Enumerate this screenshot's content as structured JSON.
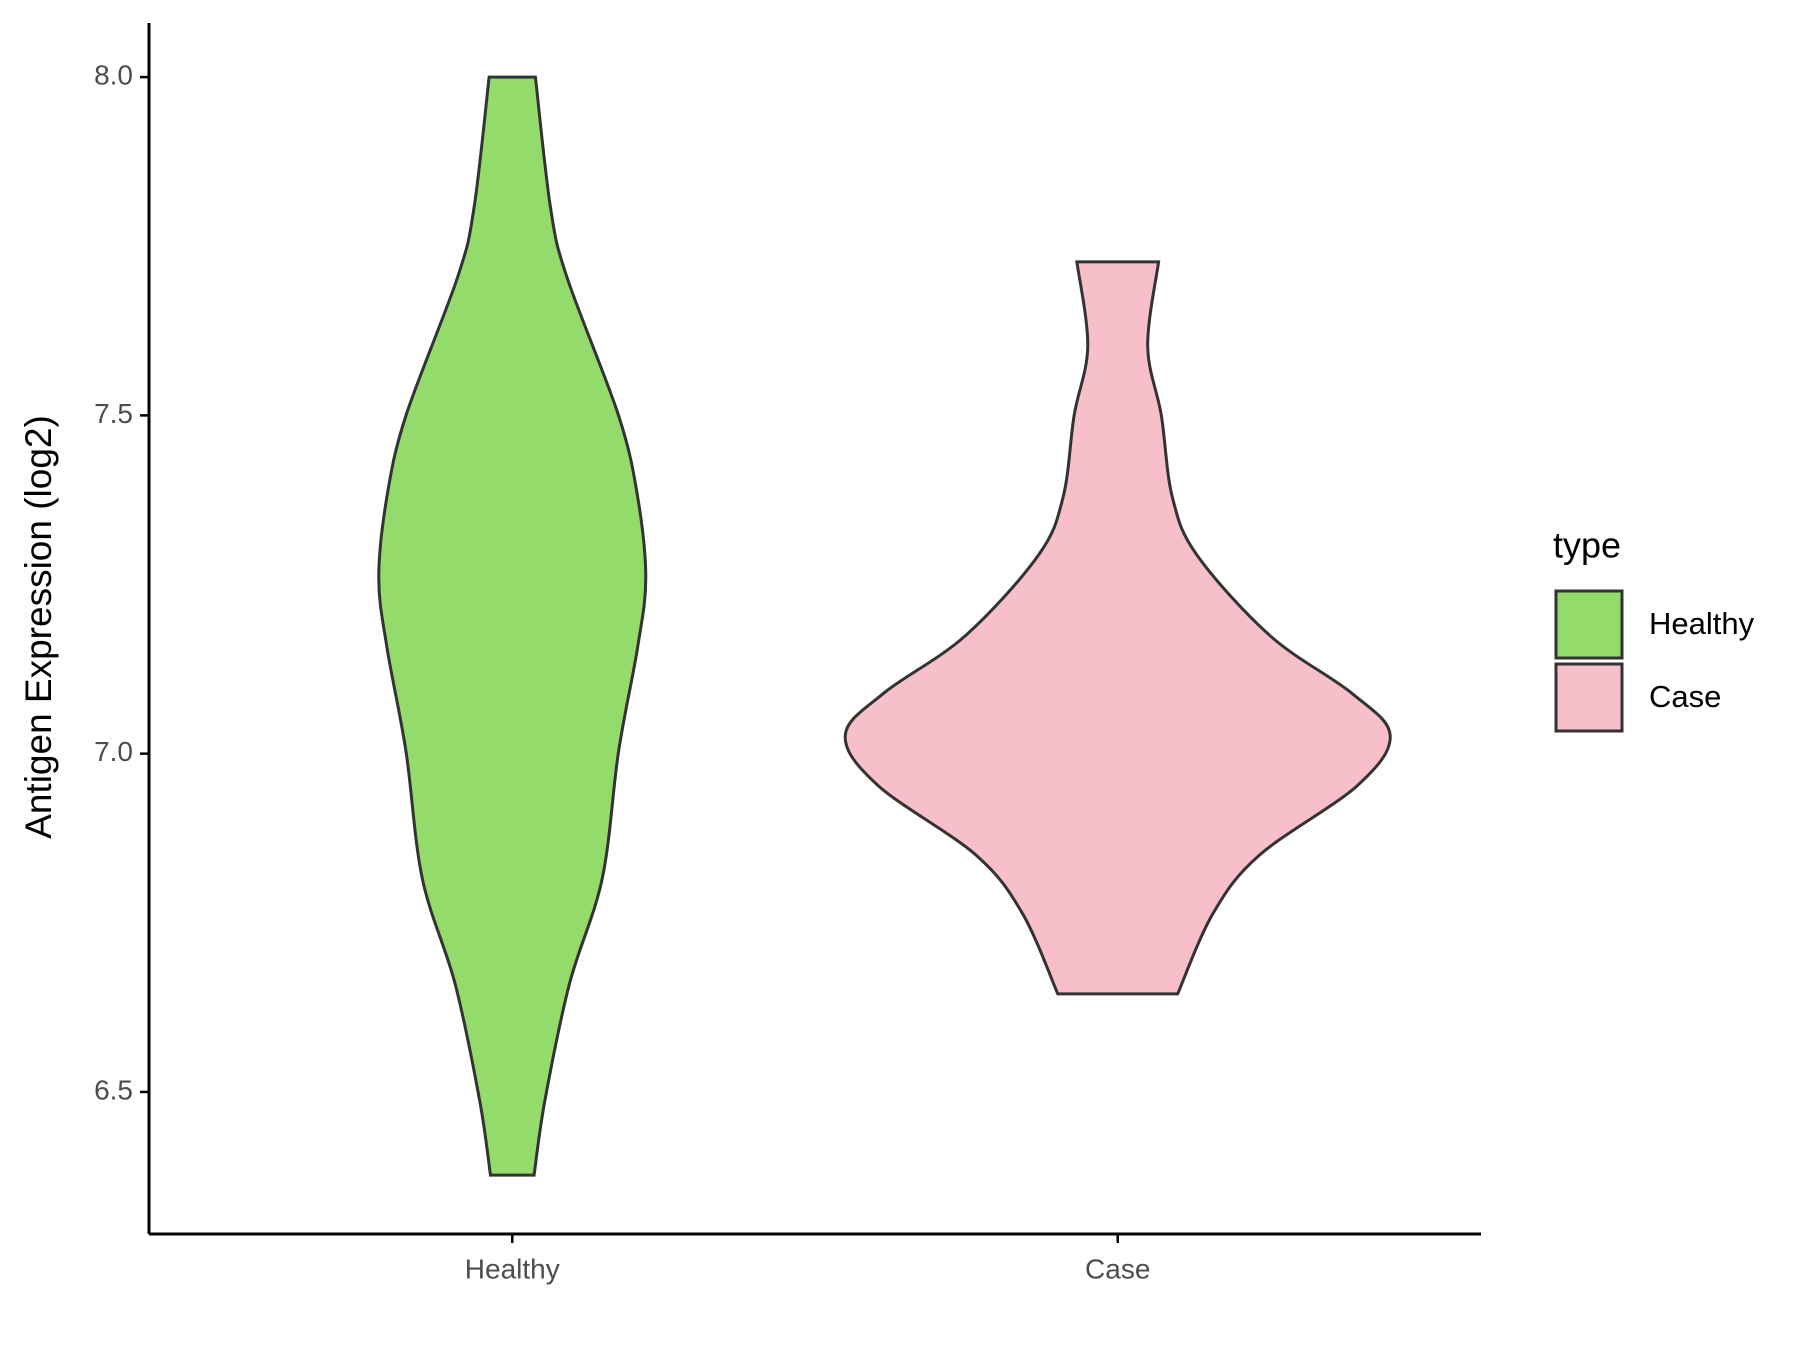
{
  "chart_data": {
    "type": "violin",
    "y_label": "Antigen Expression (log2)",
    "categories": [
      "Healthy",
      "Case"
    ],
    "legend_title": "type",
    "legend_position": "right",
    "series": [
      {
        "name": "Healthy",
        "color": "#93dc6b",
        "y": [
          8.0,
          7.808,
          7.705,
          7.5,
          7.38,
          7.26,
          7.157,
          7.003,
          6.815,
          6.66,
          6.488,
          6.377
        ],
        "width": [
          0.085,
          0.14,
          0.2,
          0.39,
          0.46,
          0.49,
          0.46,
          0.39,
          0.33,
          0.21,
          0.12,
          0.08
        ]
      },
      {
        "name": "Case",
        "color": "#f7bfca",
        "y": [
          7.727,
          7.602,
          7.5,
          7.38,
          7.294,
          7.174,
          7.089,
          7.027,
          6.953,
          6.85,
          6.764,
          6.645
        ],
        "width": [
          0.15,
          0.11,
          0.16,
          0.2,
          0.29,
          0.56,
          0.86,
          1.0,
          0.88,
          0.52,
          0.35,
          0.22
        ]
      }
    ],
    "ylim": [
      6.29,
      8.08
    ],
    "yticks": [
      6.5,
      {
        "value": 7,
        "label": "7.0"
      },
      7.5,
      {
        "value": 8,
        "label": "8.0"
      }
    ]
  }
}
